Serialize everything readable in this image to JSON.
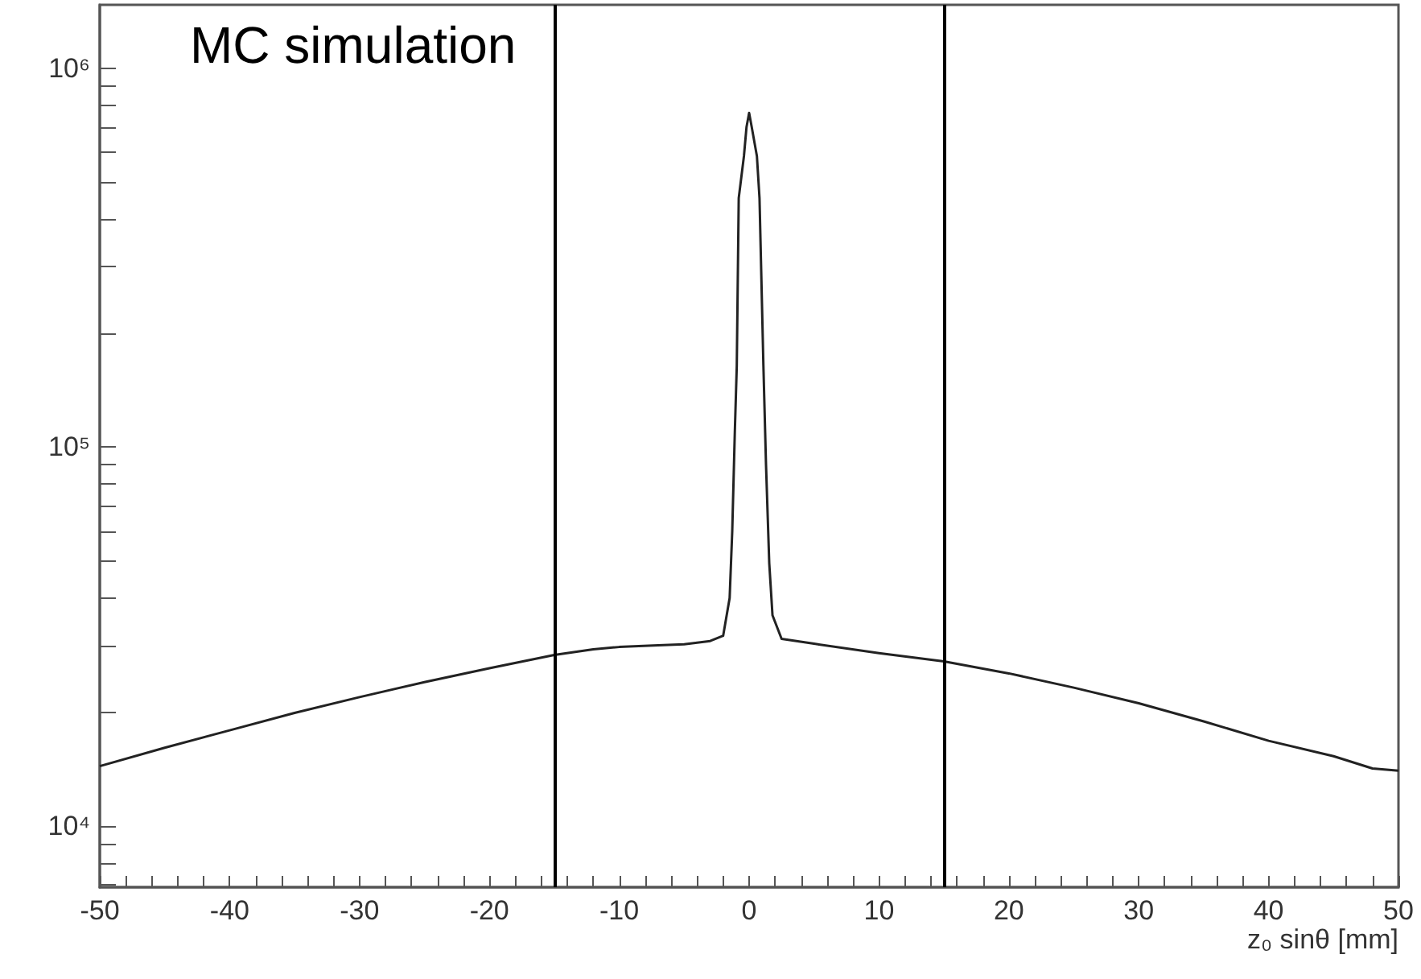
{
  "chart_data": {
    "type": "line",
    "xlabel": "z₀ sinθ [mm]",
    "annotations": [
      "MC simulation"
    ],
    "x": [
      -50,
      -45,
      -40,
      -35,
      -30,
      -25,
      -20,
      -15,
      -12,
      -10,
      -7,
      -5,
      -3,
      -2,
      -1.5,
      -1.3,
      -1.1,
      -0.95,
      -0.8,
      -0.4,
      -0.2,
      0,
      0.2,
      0.6,
      0.8,
      1.1,
      1.3,
      1.55,
      1.8,
      2.5,
      5,
      10,
      15,
      20,
      25,
      30,
      35,
      40,
      45,
      48,
      50
    ],
    "series": [
      {
        "color": "#222222",
        "values": [
          14400,
          16100,
          17900,
          19900,
          21900,
          24000,
          26100,
          28300,
          29300,
          29700,
          30000,
          30200,
          30800,
          31800,
          40000,
          60000,
          110000,
          164000,
          454000,
          586000,
          700000,
          762000,
          700000,
          586000,
          454000,
          164000,
          90000,
          49400,
          36000,
          31200,
          30300,
          28600,
          27200,
          25300,
          23200,
          21100,
          18900,
          16800,
          15300,
          14200,
          14000
        ]
      }
    ],
    "log": "y",
    "xlim": [
      -50,
      50
    ],
    "ylim": [
      6900,
      1470000
    ],
    "xticks": [
      -50,
      {
        "value": -48,
        "label": null
      },
      {
        "value": -46,
        "label": null
      },
      {
        "value": -44,
        "label": null
      },
      {
        "value": -42,
        "label": null
      },
      -40,
      {
        "value": -38,
        "label": null
      },
      {
        "value": -36,
        "label": null
      },
      {
        "value": -34,
        "label": null
      },
      {
        "value": -32,
        "label": null
      },
      -30,
      {
        "value": -28,
        "label": null
      },
      {
        "value": -26,
        "label": null
      },
      {
        "value": -24,
        "label": null
      },
      {
        "value": -22,
        "label": null
      },
      -20,
      {
        "value": -18,
        "label": null
      },
      {
        "value": -16,
        "label": null
      },
      {
        "value": -14,
        "label": null
      },
      {
        "value": -12,
        "label": null
      },
      -10,
      {
        "value": -8,
        "label": null
      },
      {
        "value": -6,
        "label": null
      },
      {
        "value": -4,
        "label": null
      },
      {
        "value": -2,
        "label": null
      },
      0,
      {
        "value": 2,
        "label": null
      },
      {
        "value": 4,
        "label": null
      },
      {
        "value": 6,
        "label": null
      },
      {
        "value": 8,
        "label": null
      },
      10,
      {
        "value": 12,
        "label": null
      },
      {
        "value": 14,
        "label": null
      },
      {
        "value": 16,
        "label": null
      },
      {
        "value": 18,
        "label": null
      },
      20,
      {
        "value": 22,
        "label": null
      },
      {
        "value": 24,
        "label": null
      },
      {
        "value": 26,
        "label": null
      },
      {
        "value": 28,
        "label": null
      },
      30,
      {
        "value": 32,
        "label": null
      },
      {
        "value": 34,
        "label": null
      },
      {
        "value": 36,
        "label": null
      },
      {
        "value": 38,
        "label": null
      },
      40,
      {
        "value": 42,
        "label": null
      },
      {
        "value": 44,
        "label": null
      },
      {
        "value": 46,
        "label": null
      },
      {
        "value": 48,
        "label": null
      },
      50
    ],
    "yticks": [
      {
        "value": 7000,
        "label": null
      },
      {
        "value": 8000,
        "label": null
      },
      {
        "value": 9000,
        "label": null
      },
      {
        "value": 10000,
        "label": "10⁴"
      },
      {
        "value": 20000,
        "label": null
      },
      {
        "value": 30000,
        "label": null
      },
      {
        "value": 40000,
        "label": null
      },
      {
        "value": 50000,
        "label": null
      },
      {
        "value": 60000,
        "label": null
      },
      {
        "value": 70000,
        "label": null
      },
      {
        "value": 80000,
        "label": null
      },
      {
        "value": 90000,
        "label": null
      },
      {
        "value": 100000,
        "label": "10⁵"
      },
      {
        "value": 200000,
        "label": null
      },
      {
        "value": 300000,
        "label": null
      },
      {
        "value": 400000,
        "label": null
      },
      {
        "value": 500000,
        "label": null
      },
      {
        "value": 600000,
        "label": null
      },
      {
        "value": 700000,
        "label": null
      },
      {
        "value": 800000,
        "label": null
      },
      {
        "value": 900000,
        "label": null
      },
      {
        "value": 1000000,
        "label": "10⁶"
      }
    ],
    "ref_lines": [
      {
        "axis": "x",
        "value": -15,
        "color": "#000000"
      },
      {
        "axis": "x",
        "value": 15,
        "color": "#000000"
      }
    ],
    "grid": false,
    "marker": "none",
    "line_style": "solid"
  }
}
